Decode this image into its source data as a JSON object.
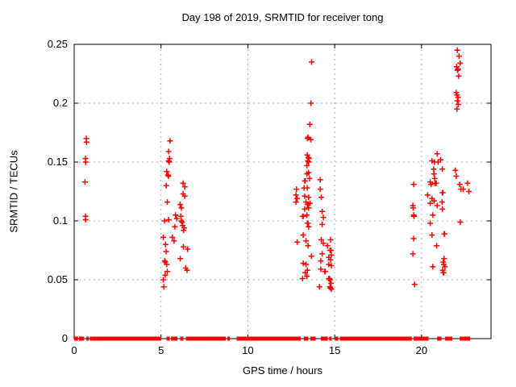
{
  "chart_data": {
    "type": "scatter",
    "title": "Day 198 of 2019, SRMTID for receiver tong",
    "xlabel": "GPS time / hours",
    "ylabel": "SRMTID / TECUs",
    "xlim": [
      0,
      24
    ],
    "ylim": [
      0,
      0.25
    ],
    "xticks": [
      0,
      5,
      10,
      15,
      20
    ],
    "xtick_labels": [
      "0",
      "5",
      "10",
      "15",
      "20"
    ],
    "yticks": [
      0,
      0.05,
      0.1,
      0.15,
      0.2,
      0.25
    ],
    "ytick_labels": [
      "0",
      "0.05",
      "0.1",
      "0.15",
      "0.2",
      "0.25"
    ],
    "grid": true,
    "legend": "none",
    "marker": "plus",
    "marker_color": "#ff0000",
    "grid_color": "#b0b0b0",
    "border_color": "#000000",
    "points": [
      [
        0.7,
        0.17
      ],
      [
        0.71,
        0.167
      ],
      [
        0.65,
        0.153
      ],
      [
        0.66,
        0.15
      ],
      [
        0.62,
        0.133
      ],
      [
        0.65,
        0.104
      ],
      [
        0.66,
        0.101
      ],
      [
        5.52,
        0.168
      ],
      [
        5.44,
        0.159
      ],
      [
        5.49,
        0.153
      ],
      [
        5.44,
        0.151
      ],
      [
        5.47,
        0.15
      ],
      [
        5.33,
        0.142
      ],
      [
        5.4,
        0.139
      ],
      [
        5.43,
        0.138
      ],
      [
        5.3,
        0.13
      ],
      [
        6.27,
        0.132
      ],
      [
        6.37,
        0.129
      ],
      [
        6.27,
        0.123
      ],
      [
        6.37,
        0.121
      ],
      [
        5.36,
        0.116
      ],
      [
        6.1,
        0.114
      ],
      [
        6.17,
        0.111
      ],
      [
        5.83,
        0.105
      ],
      [
        6.14,
        0.104
      ],
      [
        5.2,
        0.1
      ],
      [
        5.44,
        0.101
      ],
      [
        5.91,
        0.102
      ],
      [
        6.16,
        0.1
      ],
      [
        6.22,
        0.099
      ],
      [
        5.8,
        0.095
      ],
      [
        6.25,
        0.096
      ],
      [
        6.33,
        0.094
      ],
      [
        6.3,
        0.092
      ],
      [
        5.13,
        0.086
      ],
      [
        5.65,
        0.086
      ],
      [
        5.75,
        0.083
      ],
      [
        5.26,
        0.08
      ],
      [
        6.29,
        0.078
      ],
      [
        6.53,
        0.076
      ],
      [
        5.29,
        0.074
      ],
      [
        6.11,
        0.068
      ],
      [
        5.21,
        0.066
      ],
      [
        5.25,
        0.065
      ],
      [
        5.33,
        0.063
      ],
      [
        6.42,
        0.06
      ],
      [
        6.5,
        0.058
      ],
      [
        5.36,
        0.057
      ],
      [
        5.24,
        0.054
      ],
      [
        5.13,
        0.05
      ],
      [
        5.16,
        0.044
      ],
      [
        13.67,
        0.235
      ],
      [
        13.64,
        0.2
      ],
      [
        13.57,
        0.182
      ],
      [
        13.46,
        0.171
      ],
      [
        13.44,
        0.17
      ],
      [
        13.63,
        0.169
      ],
      [
        13.42,
        0.156
      ],
      [
        13.48,
        0.154
      ],
      [
        13.52,
        0.153
      ],
      [
        13.45,
        0.151
      ],
      [
        13.5,
        0.15
      ],
      [
        13.4,
        0.147
      ],
      [
        13.5,
        0.141
      ],
      [
        13.4,
        0.14
      ],
      [
        13.55,
        0.136
      ],
      [
        14.17,
        0.135
      ],
      [
        13.27,
        0.134
      ],
      [
        13.3,
        0.134
      ],
      [
        12.8,
        0.127
      ],
      [
        13.24,
        0.128
      ],
      [
        13.42,
        0.128
      ],
      [
        14.17,
        0.127
      ],
      [
        12.77,
        0.122
      ],
      [
        12.84,
        0.119
      ],
      [
        13.27,
        0.121
      ],
      [
        13.5,
        0.12
      ],
      [
        14.23,
        0.12
      ],
      [
        12.77,
        0.116
      ],
      [
        13.35,
        0.116
      ],
      [
        13.43,
        0.114
      ],
      [
        13.58,
        0.115
      ],
      [
        13.5,
        0.111
      ],
      [
        13.27,
        0.11
      ],
      [
        14.28,
        0.108
      ],
      [
        13.15,
        0.104
      ],
      [
        13.19,
        0.104
      ],
      [
        13.4,
        0.105
      ],
      [
        14.35,
        0.103
      ],
      [
        14.28,
        0.097
      ],
      [
        13.43,
        0.098
      ],
      [
        13.46,
        0.098
      ],
      [
        13.5,
        0.095
      ],
      [
        13.19,
        0.088
      ],
      [
        12.84,
        0.082
      ],
      [
        13.35,
        0.083
      ],
      [
        13.46,
        0.079
      ],
      [
        14.23,
        0.084
      ],
      [
        14.35,
        0.081
      ],
      [
        14.58,
        0.079
      ],
      [
        14.73,
        0.075
      ],
      [
        14.79,
        0.075
      ],
      [
        13.66,
        0.07
      ],
      [
        14.28,
        0.072
      ],
      [
        14.66,
        0.069
      ],
      [
        14.2,
        0.066
      ],
      [
        13.19,
        0.064
      ],
      [
        13.35,
        0.063
      ],
      [
        14.66,
        0.063
      ],
      [
        14.2,
        0.059
      ],
      [
        13.43,
        0.058
      ],
      [
        14.43,
        0.057
      ],
      [
        14.46,
        0.057
      ],
      [
        13.3,
        0.056
      ],
      [
        13.4,
        0.053
      ],
      [
        13.15,
        0.051
      ],
      [
        14.66,
        0.051
      ],
      [
        14.7,
        0.051
      ],
      [
        14.73,
        0.05
      ],
      [
        14.12,
        0.044
      ],
      [
        14.73,
        0.044
      ],
      [
        14.76,
        0.084
      ],
      [
        14.81,
        0.071
      ],
      [
        14.76,
        0.067
      ],
      [
        14.81,
        0.062
      ],
      [
        14.79,
        0.047
      ],
      [
        14.76,
        0.043
      ],
      [
        14.81,
        0.042
      ],
      [
        22.06,
        0.245
      ],
      [
        22.16,
        0.24
      ],
      [
        22.22,
        0.234
      ],
      [
        22.02,
        0.231
      ],
      [
        22.1,
        0.229
      ],
      [
        22.07,
        0.228
      ],
      [
        22.14,
        0.223
      ],
      [
        22.0,
        0.209
      ],
      [
        22.04,
        0.207
      ],
      [
        22.1,
        0.205
      ],
      [
        22.06,
        0.202
      ],
      [
        22.12,
        0.199
      ],
      [
        22.04,
        0.195
      ],
      [
        20.9,
        0.157
      ],
      [
        21.1,
        0.152
      ],
      [
        20.6,
        0.151
      ],
      [
        20.75,
        0.15
      ],
      [
        20.95,
        0.15
      ],
      [
        21.2,
        0.144
      ],
      [
        20.7,
        0.144
      ],
      [
        20.72,
        0.14
      ],
      [
        20.76,
        0.136
      ],
      [
        21.95,
        0.143
      ],
      [
        22.0,
        0.138
      ],
      [
        20.5,
        0.133
      ],
      [
        20.78,
        0.132
      ],
      [
        22.65,
        0.132
      ],
      [
        19.55,
        0.131
      ],
      [
        20.55,
        0.131
      ],
      [
        20.85,
        0.132
      ],
      [
        22.2,
        0.131
      ],
      [
        22.4,
        0.127
      ],
      [
        22.73,
        0.125
      ],
      [
        21.2,
        0.124
      ],
      [
        21.23,
        0.124
      ],
      [
        20.35,
        0.122
      ],
      [
        20.6,
        0.119
      ],
      [
        20.5,
        0.115
      ],
      [
        20.72,
        0.117
      ],
      [
        21.18,
        0.116
      ],
      [
        22.27,
        0.127
      ],
      [
        19.5,
        0.113
      ],
      [
        19.52,
        0.111
      ],
      [
        20.9,
        0.113
      ],
      [
        21.2,
        0.11
      ],
      [
        19.55,
        0.105
      ],
      [
        19.57,
        0.104
      ],
      [
        20.65,
        0.105
      ],
      [
        20.5,
        0.098
      ],
      [
        22.23,
        0.099
      ],
      [
        20.6,
        0.088
      ],
      [
        21.3,
        0.089
      ],
      [
        21.33,
        0.089
      ],
      [
        19.55,
        0.085
      ],
      [
        20.87,
        0.079
      ],
      [
        19.5,
        0.072
      ],
      [
        21.3,
        0.068
      ],
      [
        21.25,
        0.065
      ],
      [
        21.28,
        0.063
      ],
      [
        21.35,
        0.061
      ],
      [
        20.65,
        0.061
      ],
      [
        21.22,
        0.058
      ],
      [
        21.25,
        0.056
      ],
      [
        21.28,
        0.056
      ],
      [
        19.6,
        0.046
      ]
    ],
    "baseline_segments": [
      [
        0.0,
        0.22
      ],
      [
        0.28,
        0.57
      ],
      [
        0.7,
        0.82
      ],
      [
        0.9,
        0.96
      ],
      [
        1.04,
        1.1
      ],
      [
        1.13,
        1.18
      ],
      [
        1.26,
        1.3
      ],
      [
        1.36,
        5.01
      ],
      [
        5.32,
        5.5
      ],
      [
        5.58,
        5.94
      ],
      [
        6.1,
        6.28
      ],
      [
        6.43,
        8.73
      ],
      [
        8.82,
        8.93
      ],
      [
        9.35,
        13.04
      ],
      [
        13.22,
        13.47
      ],
      [
        13.6,
        13.9
      ],
      [
        14.2,
        14.6
      ],
      [
        14.68,
        14.82
      ],
      [
        15.0,
        15.2
      ],
      [
        15.3,
        19.44
      ],
      [
        19.55,
        20.4
      ],
      [
        20.9,
        21.15
      ],
      [
        21.36,
        21.77
      ],
      [
        22.2,
        22.8
      ]
    ]
  }
}
